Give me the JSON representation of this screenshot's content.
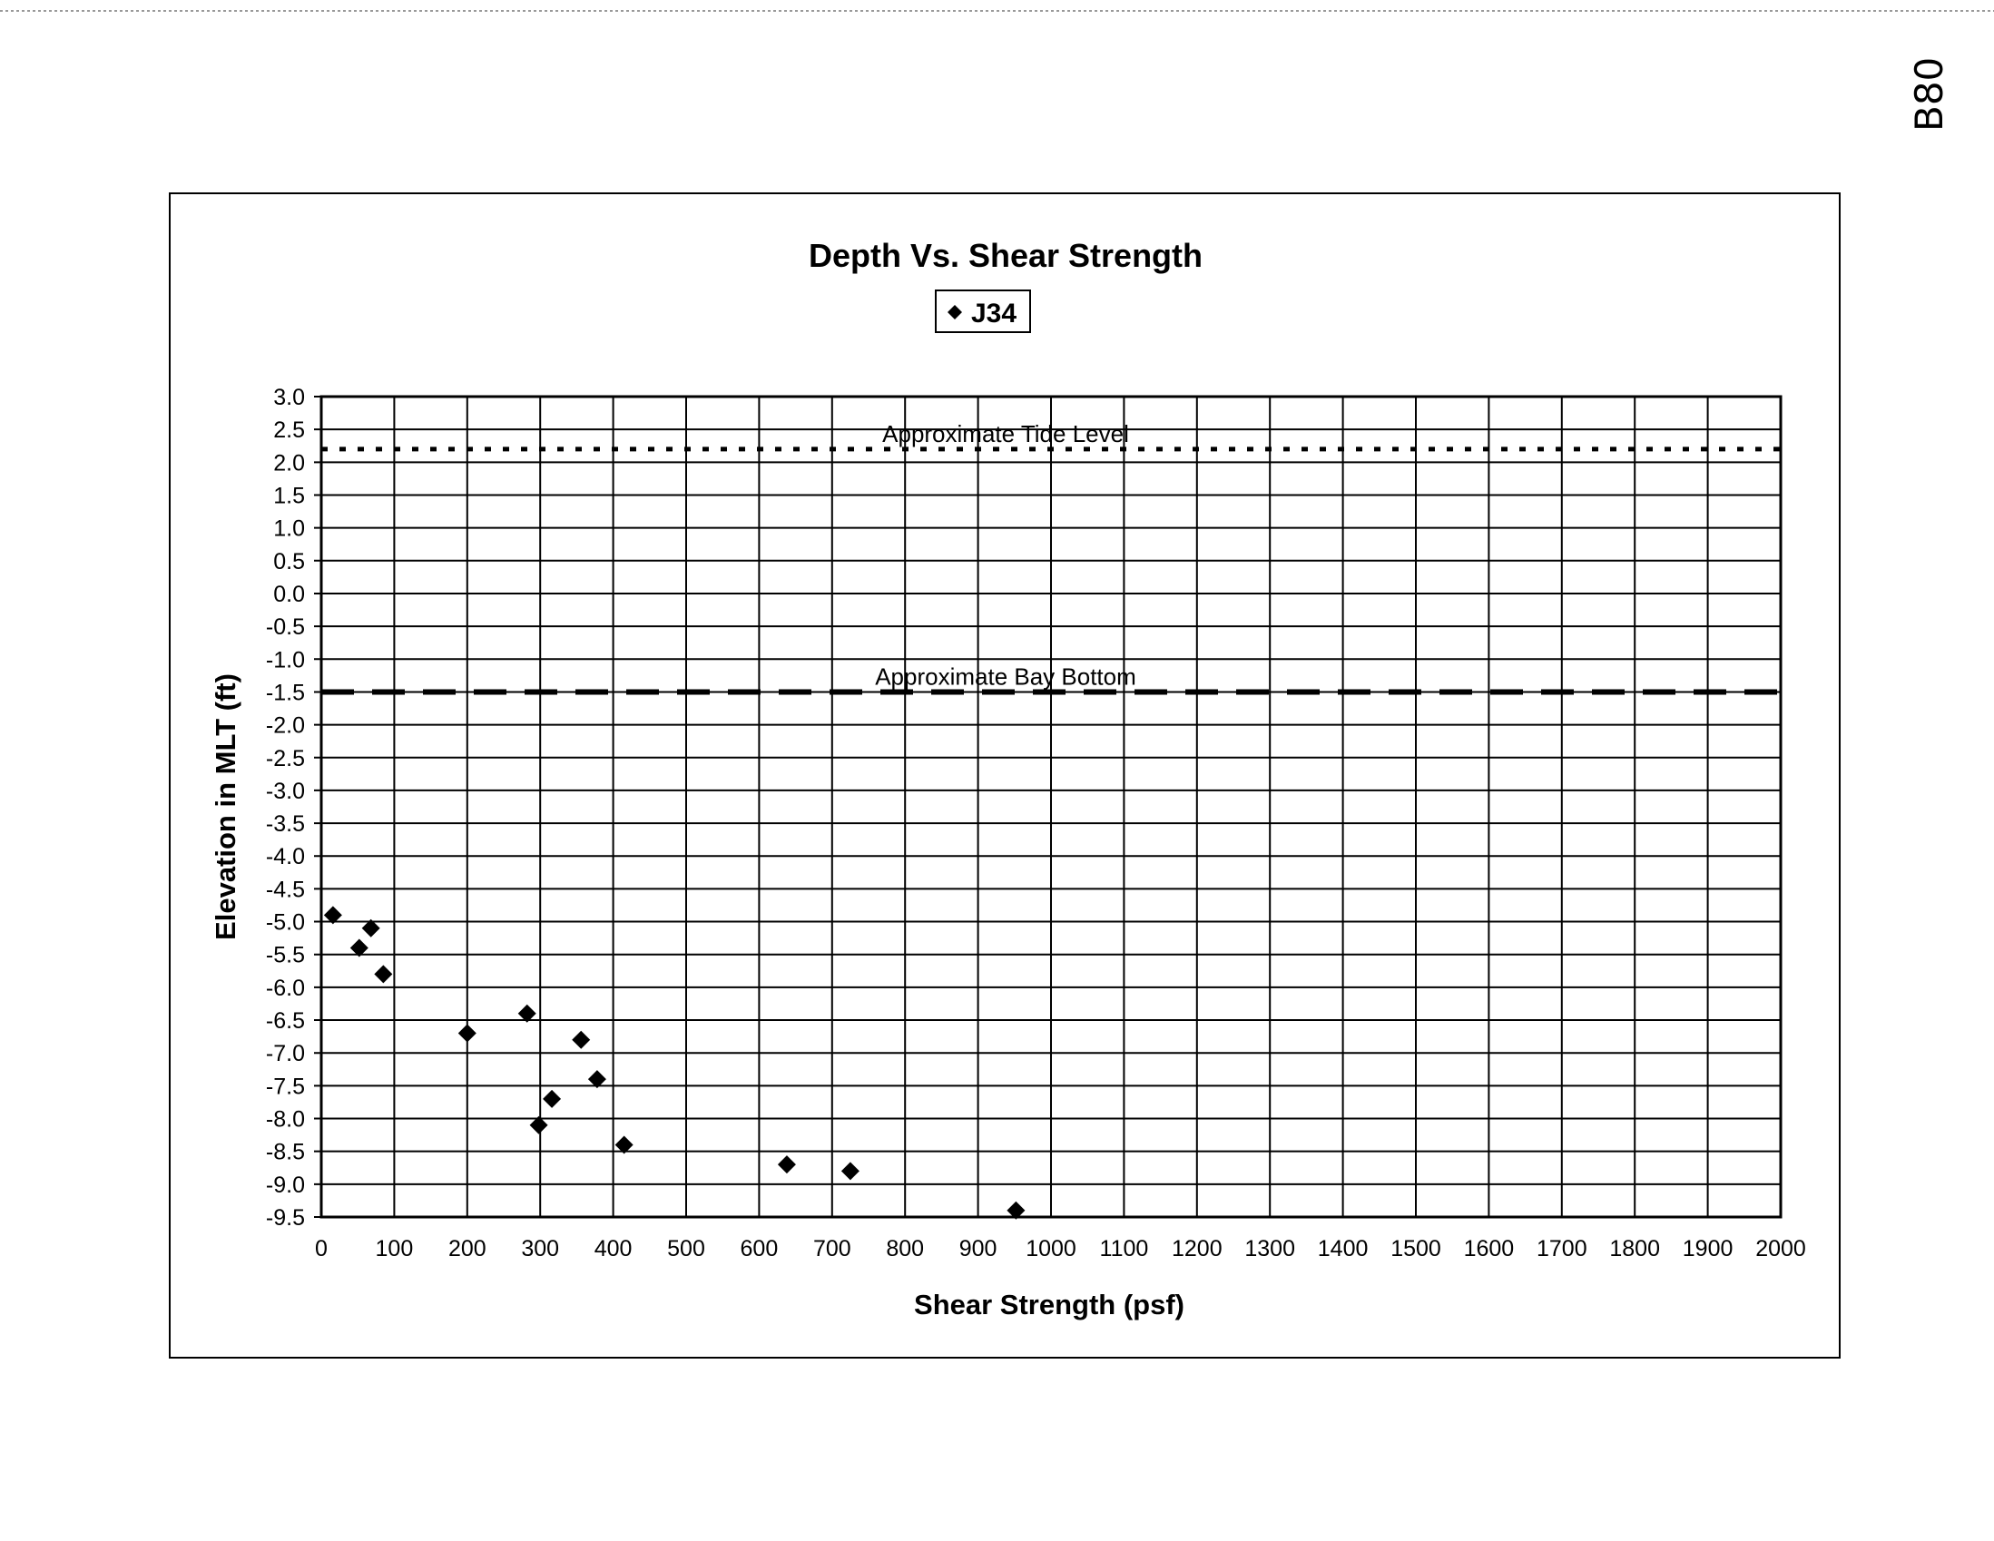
{
  "handwritten_note": "B80",
  "chart_data": {
    "type": "scatter",
    "title": "Depth Vs. Shear Strength",
    "xlabel": "Shear Strength (psf)",
    "ylabel": "Elevation in MLT (ft)",
    "xlim": [
      0,
      2000
    ],
    "ylim": [
      -9.5,
      3.0
    ],
    "xticks": [
      0,
      100,
      200,
      300,
      400,
      500,
      600,
      700,
      800,
      900,
      1000,
      1100,
      1200,
      1300,
      1400,
      1500,
      1600,
      1700,
      1800,
      1900,
      2000
    ],
    "yticks": [
      3.0,
      2.5,
      2.0,
      1.5,
      1.0,
      0.5,
      0.0,
      -0.5,
      -1.0,
      -1.5,
      -2.0,
      -2.5,
      -3.0,
      -3.5,
      -4.0,
      -4.5,
      -5.0,
      -5.5,
      -6.0,
      -6.5,
      -7.0,
      -7.5,
      -8.0,
      -8.5,
      -9.0,
      -9.5
    ],
    "grid": true,
    "legend_placement": "top-center",
    "series": [
      {
        "name": "J34",
        "marker": "diamond",
        "color": "#000000",
        "points": [
          {
            "x": 16,
            "y": -4.9
          },
          {
            "x": 52,
            "y": -5.4
          },
          {
            "x": 68,
            "y": -5.1
          },
          {
            "x": 85,
            "y": -5.8
          },
          {
            "x": 200,
            "y": -6.7
          },
          {
            "x": 282,
            "y": -6.4
          },
          {
            "x": 298,
            "y": -8.1
          },
          {
            "x": 316,
            "y": -7.7
          },
          {
            "x": 356,
            "y": -6.8
          },
          {
            "x": 378,
            "y": -7.4
          },
          {
            "x": 415,
            "y": -8.4
          },
          {
            "x": 638,
            "y": -8.7
          },
          {
            "x": 725,
            "y": -8.8
          },
          {
            "x": 952,
            "y": -9.4
          }
        ]
      }
    ],
    "reference_lines": [
      {
        "label": "Approximate Tide Level",
        "y": 2.2,
        "style": "dotted"
      },
      {
        "label": "Approximate Bay Bottom",
        "y": -1.5,
        "style": "dashed"
      }
    ]
  }
}
